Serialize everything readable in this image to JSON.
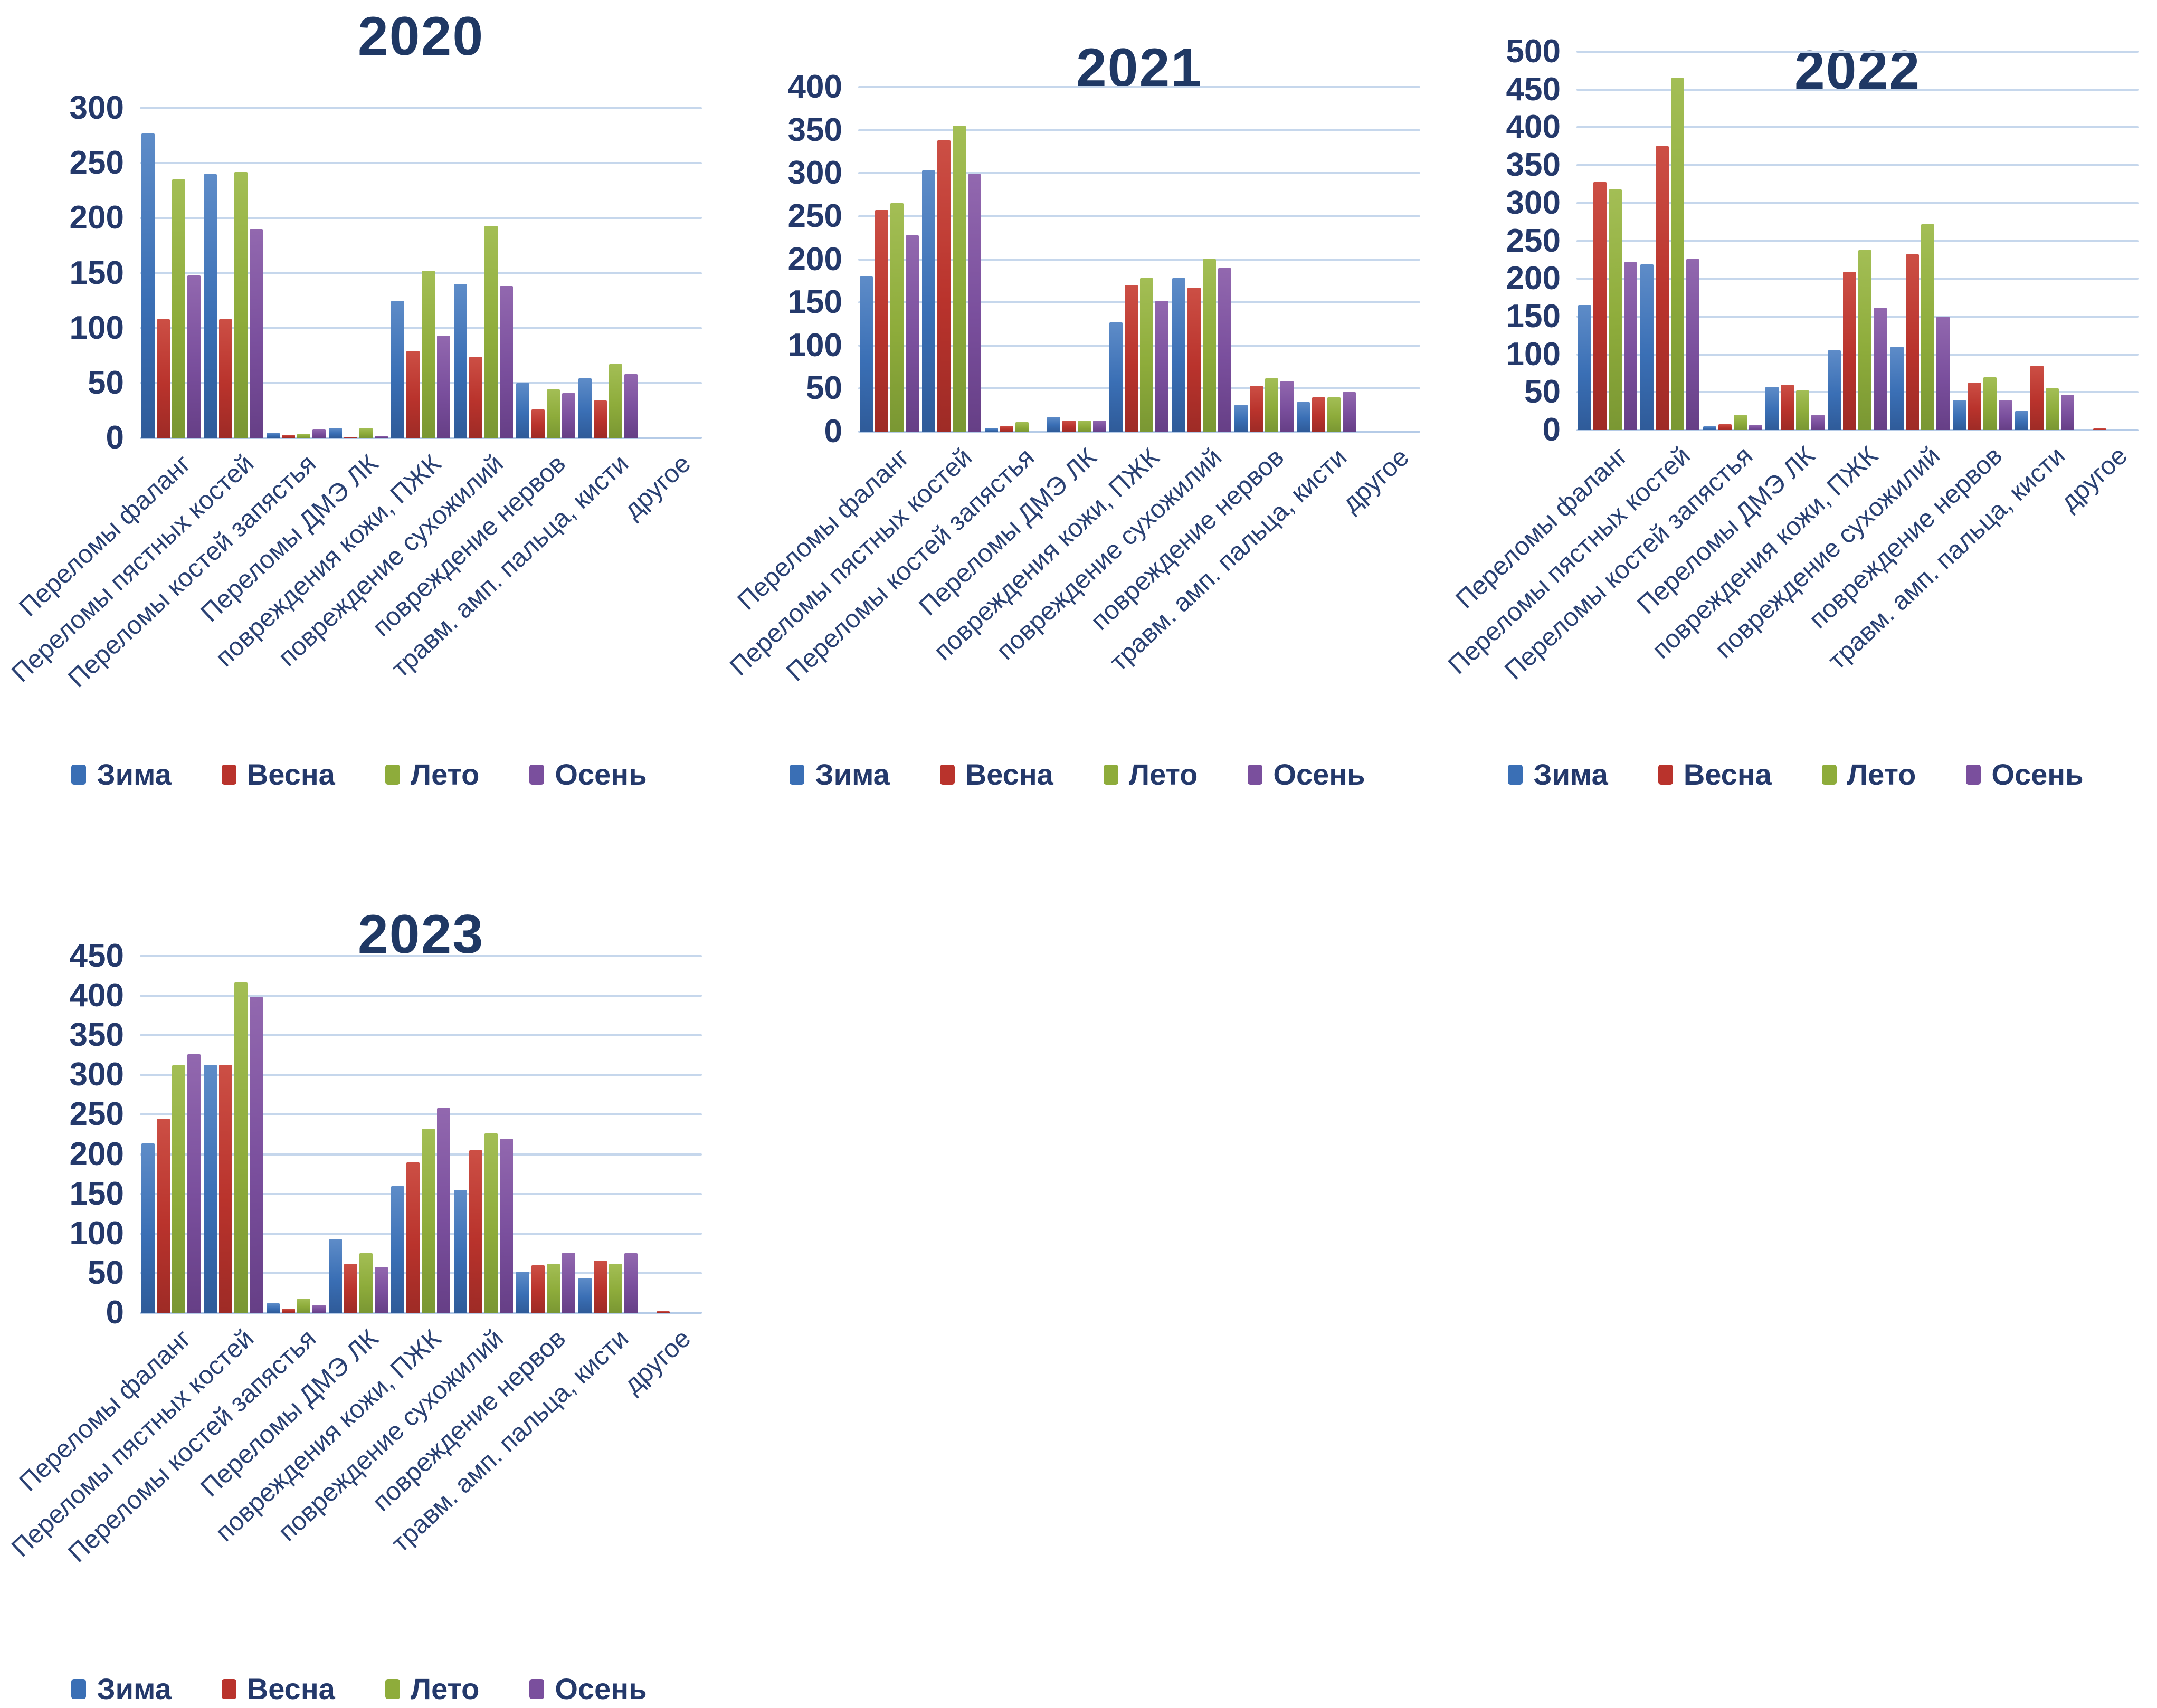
{
  "page": {
    "background": "#ffffff"
  },
  "seasons": [
    {
      "name": "Зима",
      "color": "#3A6FB5",
      "colorLight": "#5E8CC8",
      "colorDark": "#2F5B99"
    },
    {
      "name": "Весна",
      "color": "#B9332C",
      "colorLight": "#CC4F45",
      "colorDark": "#9E2B26"
    },
    {
      "name": "Лето",
      "color": "#8EAC3B",
      "colorLight": "#A3BE55",
      "colorDark": "#7A9733"
    },
    {
      "name": "Осень",
      "color": "#7A4F9D",
      "colorLight": "#9268AF",
      "colorDark": "#663F86"
    }
  ],
  "chart_data": [
    {
      "type": "bar",
      "title": "2020",
      "ylim": [
        0,
        300
      ],
      "ytick_step": 50,
      "grid": true,
      "legend_position": "bottom",
      "categories": [
        "Переломы фаланг",
        "Переломы пястных костей",
        "Переломы костей запястья",
        "Переломы ДМЭ ЛК",
        "повреждения кожи, ПЖК",
        "повреждение сухожилий",
        "повреждение нервов",
        "травм. амп. пальца, кисти",
        "другое"
      ],
      "series": [
        {
          "name": "Зима",
          "values": [
            277,
            240,
            5,
            9,
            125,
            140,
            50,
            54,
            0
          ]
        },
        {
          "name": "Весна",
          "values": [
            108,
            108,
            3,
            1,
            79,
            74,
            26,
            34,
            0
          ]
        },
        {
          "name": "Лето",
          "values": [
            235,
            242,
            4,
            9,
            152,
            193,
            44,
            67,
            0
          ]
        },
        {
          "name": "Осень",
          "values": [
            148,
            190,
            8,
            2,
            93,
            138,
            41,
            58,
            0
          ]
        }
      ]
    },
    {
      "type": "bar",
      "title": "2021",
      "ylim": [
        0,
        400
      ],
      "ytick_step": 50,
      "grid": true,
      "legend_position": "bottom",
      "categories": [
        "Переломы фаланг",
        "Переломы пястных костей",
        "Переломы костей запястья",
        "Переломы ДМЭ ЛК",
        "повреждения кожи, ПЖК",
        "повреждение сухожилий",
        "повреждение нервов",
        "травм. амп. пальца, кисти",
        "другое"
      ],
      "series": [
        {
          "name": "Зима",
          "values": [
            180,
            303,
            4,
            17,
            127,
            178,
            31,
            34,
            0
          ]
        },
        {
          "name": "Весна",
          "values": [
            257,
            338,
            7,
            13,
            170,
            167,
            53,
            40,
            0
          ]
        },
        {
          "name": "Лето",
          "values": [
            265,
            355,
            11,
            13,
            178,
            200,
            62,
            40,
            0
          ]
        },
        {
          "name": "Осень",
          "values": [
            228,
            299,
            0,
            13,
            152,
            190,
            59,
            46,
            0
          ]
        }
      ]
    },
    {
      "type": "bar",
      "title": "2022",
      "ylim": [
        0,
        500
      ],
      "ytick_step": 50,
      "grid": true,
      "legend_position": "bottom",
      "categories": [
        "Переломы фаланг",
        "Переломы пястных костей",
        "Переломы костей запястья",
        "Переломы ДМЭ ЛК",
        "повреждения кожи, ПЖК",
        "повреждение сухожилий",
        "повреждение нервов",
        "травм. амп. пальца, кисти",
        "другое"
      ],
      "series": [
        {
          "name": "Зима",
          "values": [
            165,
            219,
            5,
            57,
            105,
            110,
            40,
            25,
            0
          ]
        },
        {
          "name": "Весна",
          "values": [
            328,
            375,
            8,
            60,
            209,
            232,
            63,
            85,
            2
          ]
        },
        {
          "name": "Лето",
          "values": [
            318,
            465,
            20,
            52,
            238,
            272,
            70,
            55,
            0
          ]
        },
        {
          "name": "Осень",
          "values": [
            222,
            226,
            7,
            20,
            162,
            150,
            40,
            47,
            0
          ]
        }
      ]
    },
    {
      "type": "bar",
      "title": "2023",
      "ylim": [
        0,
        450
      ],
      "ytick_step": 50,
      "grid": true,
      "legend_position": "bottom",
      "categories": [
        "Переломы фаланг",
        "Переломы пястных костей",
        "Переломы костей запястья",
        "Переломы ДМЭ ЛК",
        "повреждения кожи, ПЖК",
        "повреждение сухожилий",
        "повреждение нервов",
        "травм. амп. пальца, кисти",
        "другое"
      ],
      "series": [
        {
          "name": "Зима",
          "values": [
            214,
            313,
            12,
            93,
            160,
            155,
            52,
            44,
            0
          ]
        },
        {
          "name": "Весна",
          "values": [
            245,
            313,
            5,
            62,
            190,
            205,
            60,
            66,
            2
          ]
        },
        {
          "name": "Лето",
          "values": [
            312,
            417,
            18,
            75,
            232,
            226,
            62,
            62,
            0
          ]
        },
        {
          "name": "Осень",
          "values": [
            326,
            399,
            10,
            58,
            258,
            220,
            76,
            75,
            0
          ]
        }
      ]
    }
  ]
}
